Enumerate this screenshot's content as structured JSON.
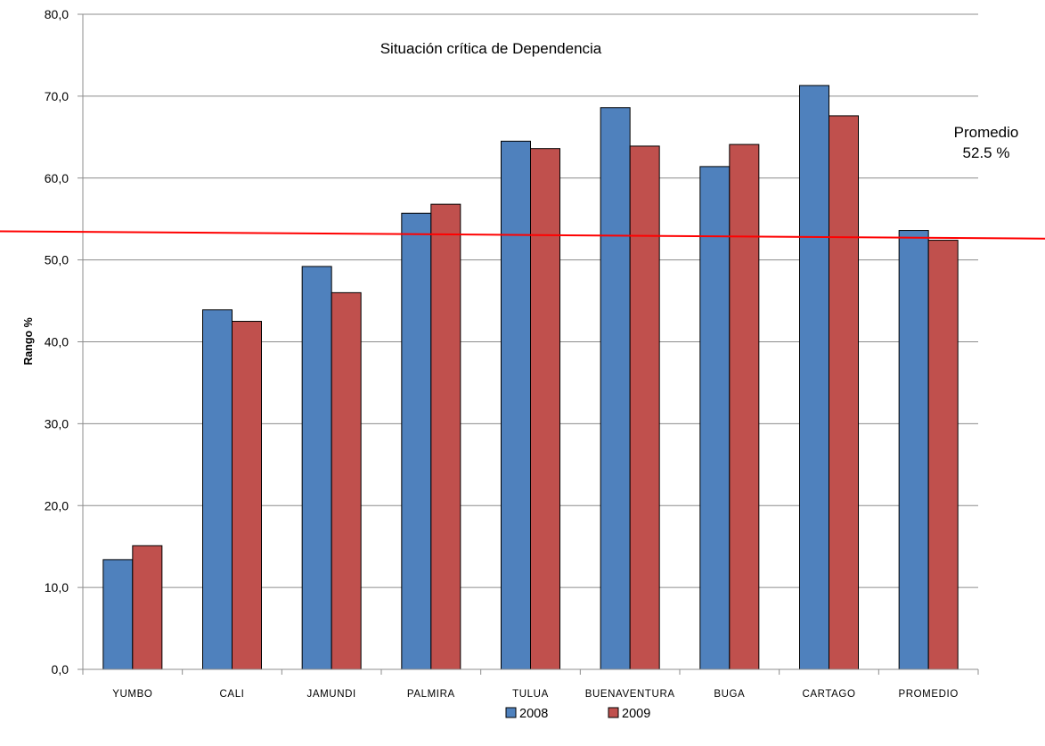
{
  "chart_data": {
    "type": "bar",
    "categories": [
      "YUMBO",
      "CALI",
      "JAMUNDI",
      "PALMIRA",
      "TULUA",
      "BUENAVENTURA",
      "BUGA",
      "CARTAGO",
      "PROMEDIO"
    ],
    "series": [
      {
        "name": "2008",
        "color": "#4F81BD",
        "values": [
          13.4,
          43.9,
          49.2,
          55.7,
          64.5,
          68.6,
          61.4,
          71.3,
          53.6
        ]
      },
      {
        "name": "2009",
        "color": "#C0504D",
        "values": [
          15.1,
          42.5,
          46.0,
          56.8,
          63.6,
          63.9,
          64.1,
          67.6,
          52.4
        ]
      }
    ],
    "ylabel": "Rango %",
    "xlabel": "",
    "ylim": [
      0,
      80
    ],
    "yticks": [
      0,
      10,
      20,
      30,
      40,
      50,
      60,
      70,
      80
    ],
    "ytick_labels": [
      "0,0",
      "10,0",
      "20,0",
      "30,0",
      "40,0",
      "50,0",
      "60,0",
      "70,0",
      "80,0"
    ],
    "grid": true,
    "legend_position": "bottom",
    "annotations": {
      "title_text": "Situación crítica de Dependencia",
      "average_line": {
        "label_line1": "Promedio",
        "label_line2": "52.5 %",
        "value_start": 53.5,
        "value_end": 52.6,
        "color": "#FF0000"
      }
    }
  }
}
